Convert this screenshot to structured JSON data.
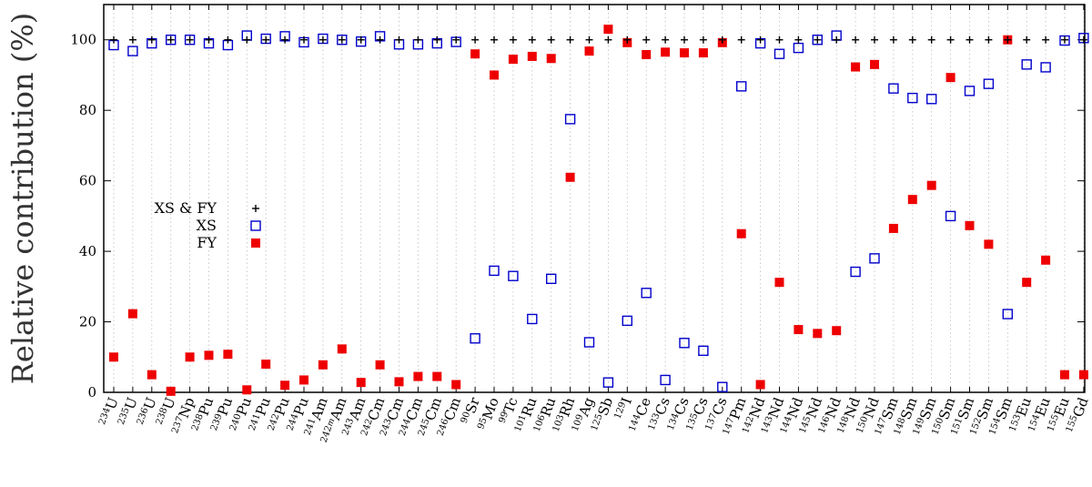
{
  "chart_data": {
    "type": "scatter",
    "ylabel": "Relative contribution (%)",
    "xlabel": "",
    "ylim": [
      0,
      110
    ],
    "yticks": [
      0,
      20,
      40,
      60,
      80,
      100
    ],
    "grid": "vertical dotted",
    "legend_position": "left",
    "categories": [
      "234U",
      "235U",
      "236U",
      "238U",
      "237Np",
      "238Pu",
      "239Pu",
      "240Pu",
      "241Pu",
      "242Pu",
      "244Pu",
      "241Am",
      "242mAm",
      "243Am",
      "242Cm",
      "243Cm",
      "244Cm",
      "245Cm",
      "246Cm",
      "90Sr",
      "95Mo",
      "99Tc",
      "101Ru",
      "106Ru",
      "103Rh",
      "109Ag",
      "125Sb",
      "129I",
      "144Ce",
      "133Cs",
      "134Cs",
      "135Cs",
      "137Cs",
      "147Pm",
      "142Nd",
      "143Nd",
      "144Nd",
      "145Nd",
      "146Nd",
      "148Nd",
      "150Nd",
      "147Sm",
      "148Sm",
      "149Sm",
      "150Sm",
      "151Sm",
      "152Sm",
      "154Sm",
      "153Eu",
      "154Eu",
      "155Eu",
      "155Gd"
    ],
    "category_labels": [
      {
        "mass": "234",
        "sup": "",
        "el": "U"
      },
      {
        "mass": "235",
        "sup": "",
        "el": "U"
      },
      {
        "mass": "236",
        "sup": "",
        "el": "U"
      },
      {
        "mass": "238",
        "sup": "",
        "el": "U"
      },
      {
        "mass": "237",
        "sup": "",
        "el": "Np"
      },
      {
        "mass": "238",
        "sup": "",
        "el": "Pu"
      },
      {
        "mass": "239",
        "sup": "",
        "el": "Pu"
      },
      {
        "mass": "240",
        "sup": "",
        "el": "Pu"
      },
      {
        "mass": "241",
        "sup": "",
        "el": "Pu"
      },
      {
        "mass": "242",
        "sup": "",
        "el": "Pu"
      },
      {
        "mass": "244",
        "sup": "",
        "el": "Pu"
      },
      {
        "mass": "241",
        "sup": "",
        "el": "Am"
      },
      {
        "mass": "242",
        "sup": "m",
        "el": "Am"
      },
      {
        "mass": "243",
        "sup": "",
        "el": "Am"
      },
      {
        "mass": "242",
        "sup": "",
        "el": "Cm"
      },
      {
        "mass": "243",
        "sup": "",
        "el": "Cm"
      },
      {
        "mass": "244",
        "sup": "",
        "el": "Cm"
      },
      {
        "mass": "245",
        "sup": "",
        "el": "Cm"
      },
      {
        "mass": "246",
        "sup": "",
        "el": "Cm"
      },
      {
        "mass": "90",
        "sup": "",
        "el": "Sr"
      },
      {
        "mass": "95",
        "sup": "",
        "el": "Mo"
      },
      {
        "mass": "99",
        "sup": "",
        "el": "Tc"
      },
      {
        "mass": "101",
        "sup": "",
        "el": "Ru"
      },
      {
        "mass": "106",
        "sup": "",
        "el": "Ru"
      },
      {
        "mass": "103",
        "sup": "",
        "el": "Rh"
      },
      {
        "mass": "109",
        "sup": "",
        "el": "Ag"
      },
      {
        "mass": "125",
        "sup": "",
        "el": "Sb"
      },
      {
        "mass": "129",
        "sup": "",
        "el": "I"
      },
      {
        "mass": "144",
        "sup": "",
        "el": "Ce"
      },
      {
        "mass": "133",
        "sup": "",
        "el": "Cs"
      },
      {
        "mass": "134",
        "sup": "",
        "el": "Cs"
      },
      {
        "mass": "135",
        "sup": "",
        "el": "Cs"
      },
      {
        "mass": "137",
        "sup": "",
        "el": "Cs"
      },
      {
        "mass": "147",
        "sup": "",
        "el": "Pm"
      },
      {
        "mass": "142",
        "sup": "",
        "el": "Nd"
      },
      {
        "mass": "143",
        "sup": "",
        "el": "Nd"
      },
      {
        "mass": "144",
        "sup": "",
        "el": "Nd"
      },
      {
        "mass": "145",
        "sup": "",
        "el": "Nd"
      },
      {
        "mass": "146",
        "sup": "",
        "el": "Nd"
      },
      {
        "mass": "148",
        "sup": "",
        "el": "Nd"
      },
      {
        "mass": "150",
        "sup": "",
        "el": "Nd"
      },
      {
        "mass": "147",
        "sup": "",
        "el": "Sm"
      },
      {
        "mass": "148",
        "sup": "",
        "el": "Sm"
      },
      {
        "mass": "149",
        "sup": "",
        "el": "Sm"
      },
      {
        "mass": "150",
        "sup": "",
        "el": "Sm"
      },
      {
        "mass": "151",
        "sup": "",
        "el": "Sm"
      },
      {
        "mass": "152",
        "sup": "",
        "el": "Sm"
      },
      {
        "mass": "154",
        "sup": "",
        "el": "Sm"
      },
      {
        "mass": "153",
        "sup": "",
        "el": "Eu"
      },
      {
        "mass": "154",
        "sup": "",
        "el": "Eu"
      },
      {
        "mass": "155",
        "sup": "",
        "el": "Eu"
      },
      {
        "mass": "155",
        "sup": "",
        "el": "Gd"
      }
    ],
    "series": [
      {
        "name": "XS & FY",
        "marker": "plus",
        "color": "#000000",
        "values": [
          100,
          100,
          100,
          100,
          100,
          100,
          100,
          100,
          100,
          100,
          100,
          100,
          100,
          100,
          100,
          100,
          100,
          100,
          100,
          100,
          100,
          100,
          100,
          100,
          100,
          100,
          100,
          100,
          100,
          100,
          100,
          100,
          100,
          100,
          100,
          100,
          100,
          100,
          100,
          100,
          100,
          100,
          100,
          100,
          100,
          100,
          100,
          100,
          100,
          100,
          100,
          100
        ]
      },
      {
        "name": "XS",
        "marker": "open-square",
        "color": "#0000cc",
        "values": [
          98.5,
          96.8,
          99.0,
          100.0,
          100.0,
          99.0,
          98.5,
          101.2,
          100.3,
          101.0,
          99.3,
          100.3,
          100.0,
          99.5,
          101.0,
          98.7,
          98.7,
          99.0,
          99.4,
          15.3,
          34.5,
          33.0,
          20.8,
          32.2,
          77.5,
          14.2,
          2.8,
          20.3,
          28.2,
          3.5,
          14.0,
          11.8,
          1.5,
          86.8,
          99.0,
          96.0,
          97.7,
          100.0,
          101.2,
          34.2,
          38.0,
          86.2,
          83.5,
          83.2,
          50.0,
          85.5,
          87.5,
          22.2,
          93.0,
          92.2,
          99.8,
          100.5
        ]
      },
      {
        "name": "FY",
        "marker": "filled-square",
        "color": "#ee0000",
        "values": [
          10.0,
          22.3,
          5.0,
          0.3,
          10.0,
          10.5,
          10.8,
          0.7,
          8.0,
          2.0,
          3.5,
          7.8,
          12.3,
          2.8,
          7.8,
          3.0,
          4.5,
          4.5,
          2.2,
          96.0,
          90.0,
          94.5,
          95.3,
          94.7,
          61.0,
          96.8,
          103.0,
          99.2,
          95.8,
          96.5,
          96.3,
          96.3,
          99.2,
          45.0,
          2.2,
          31.2,
          17.8,
          16.7,
          17.5,
          92.3,
          93.0,
          46.5,
          54.7,
          58.7,
          89.3,
          47.3,
          42.0,
          100.0,
          31.2,
          37.5,
          5.0,
          5.0
        ]
      }
    ]
  }
}
